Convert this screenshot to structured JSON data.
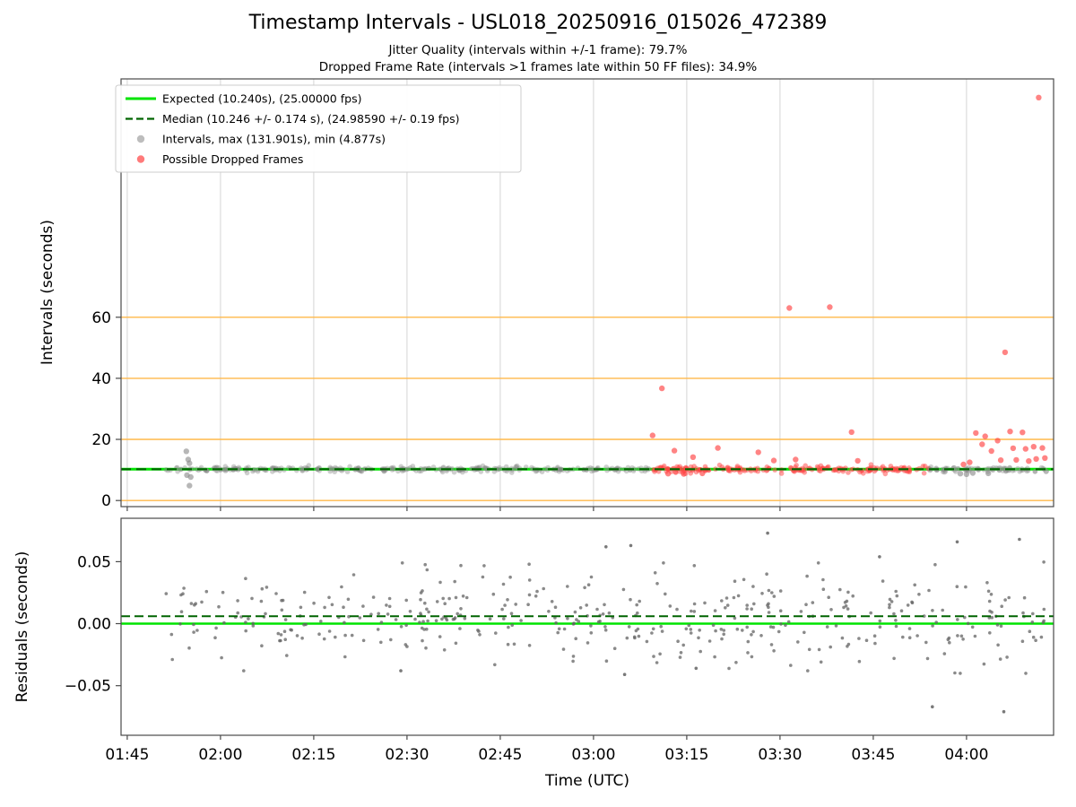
{
  "header": {
    "title": "Timestamp Intervals - USL018_20250916_015026_472389",
    "subtitle1": "Jitter Quality (intervals within +/-1 frame): 79.7%",
    "subtitle2": "Dropped Frame Rate (intervals >1 frames late within 50 FF files): 34.9%"
  },
  "xlabel": "Time (UTC)",
  "colors": {
    "expected_line": "#00e400",
    "median_line": "#006400",
    "interval_dot": "#878787",
    "dropped_dot": "#ff4242",
    "orange_gridline": "#ffb84a",
    "vertical_gridline": "#d6d6d6",
    "axis": "#4a4a4a",
    "residual_dot": "#636363",
    "legend_border": "#cccccc"
  },
  "legend": {
    "items": [
      {
        "type": "solid-line",
        "color_key": "expected_line",
        "label": "Expected (10.240s), (25.00000 fps)"
      },
      {
        "type": "dashed-line",
        "color_key": "median_line",
        "label": "Median (10.246 +/- 0.174 s), (24.98590 +/- 0.19 fps)"
      },
      {
        "type": "dot",
        "color_key": "interval_dot",
        "label": "Intervals, max (131.901s), min (4.877s)"
      },
      {
        "type": "dot",
        "color_key": "dropped_dot",
        "label": "Possible Dropped Frames"
      }
    ]
  },
  "chart_data": [
    {
      "type": "scatter",
      "name": "timestamp-intervals",
      "ylabel": "Intervals (seconds)",
      "ylim": [
        -2,
        138
      ],
      "yticks": [
        {
          "v": 0,
          "label": "0"
        },
        {
          "v": 20,
          "label": "20"
        },
        {
          "v": 40,
          "label": "40"
        },
        {
          "v": 60,
          "label": "60"
        }
      ],
      "x_minutes_lim": [
        104,
        254
      ],
      "xticks": [
        {
          "m": 105,
          "label": "01:45"
        },
        {
          "m": 120,
          "label": "02:00"
        },
        {
          "m": 135,
          "label": "02:15"
        },
        {
          "m": 150,
          "label": "02:30"
        },
        {
          "m": 165,
          "label": "02:45"
        },
        {
          "m": 180,
          "label": "03:00"
        },
        {
          "m": 195,
          "label": "03:15"
        },
        {
          "m": 210,
          "label": "03:30"
        },
        {
          "m": 225,
          "label": "03:45"
        },
        {
          "m": 240,
          "label": "04:00"
        }
      ],
      "expected_interval_s": 10.24,
      "expected_fps": "25.00000",
      "median_interval_s": 10.246,
      "median_interval_std_s": 0.174,
      "median_fps": "24.98590",
      "max_interval_s": 131.901,
      "min_interval_s": 4.877,
      "jitter_quality_pct": 79.7,
      "dropped_frame_rate_pct": 34.9,
      "ff_file_count": 50,
      "orange_lines": [
        0,
        20,
        40,
        60
      ],
      "dense_bands": [
        {
          "series": "intervals",
          "x0": 111,
          "x1": 189,
          "n": 300,
          "base": 10.24,
          "jitter": 0.4
        },
        {
          "series": "dropped",
          "x0": 189,
          "x1": 234,
          "n": 195,
          "base": 10.3,
          "jitter": 0.55
        },
        {
          "series": "intervals",
          "x0": 234,
          "x1": 252.5,
          "n": 80,
          "base": 10.2,
          "jitter": 0.45
        }
      ],
      "interval_outliers": [
        [
          114.5,
          16.1
        ],
        [
          114.8,
          13.4
        ],
        [
          115.0,
          12.2
        ],
        [
          114.6,
          8.3
        ],
        [
          115.2,
          7.7
        ],
        [
          115.0,
          4.877
        ],
        [
          239.0,
          8.8
        ],
        [
          240.0,
          8.6
        ],
        [
          241.0,
          9.0
        ],
        [
          243.5,
          8.9
        ],
        [
          252.8,
          9.6
        ]
      ],
      "dropped_outliers": [
        [
          189.5,
          21.3
        ],
        [
          191.0,
          36.7
        ],
        [
          192.0,
          8.8
        ],
        [
          193.0,
          16.3
        ],
        [
          194.5,
          8.7
        ],
        [
          196.0,
          14.2
        ],
        [
          197.5,
          8.9
        ],
        [
          200.0,
          17.2
        ],
        [
          206.5,
          15.8
        ],
        [
          209.0,
          13.1
        ],
        [
          211.5,
          63.0
        ],
        [
          212.5,
          13.4
        ],
        [
          218.0,
          63.3
        ],
        [
          221.5,
          22.4
        ],
        [
          222.5,
          13.0
        ],
        [
          239.5,
          11.8
        ],
        [
          240.5,
          12.5
        ],
        [
          241.5,
          22.1
        ],
        [
          242.5,
          18.4
        ],
        [
          243.0,
          21.0
        ],
        [
          244.0,
          16.2
        ],
        [
          245.0,
          19.6
        ],
        [
          245.5,
          13.2
        ],
        [
          246.2,
          48.5
        ],
        [
          247.0,
          22.6
        ],
        [
          247.5,
          17.1
        ],
        [
          248.0,
          13.3
        ],
        [
          249.0,
          22.3
        ],
        [
          249.5,
          16.9
        ],
        [
          250.0,
          12.9
        ],
        [
          250.8,
          17.6
        ],
        [
          251.2,
          13.6
        ],
        [
          251.6,
          131.901
        ],
        [
          252.2,
          17.2
        ],
        [
          252.6,
          13.9
        ]
      ]
    },
    {
      "type": "scatter",
      "name": "residuals",
      "ylabel": "Residuals (seconds)",
      "ylim": [
        -0.09,
        0.085
      ],
      "yticks": [
        {
          "v": 0.05,
          "label": "0.05"
        },
        {
          "v": 0,
          "label": "0.00"
        },
        {
          "v": -0.05,
          "label": "−0.05"
        }
      ],
      "zero_line": 0,
      "median_residual": 0.006,
      "cloud": [
        {
          "x0": 111,
          "x1": 234,
          "n": 380,
          "mean": 0.005,
          "sigma": 0.018,
          "clip": [
            -0.038,
            0.049
          ]
        },
        {
          "x0": 234,
          "x1": 252.5,
          "n": 55,
          "mean": 0.002,
          "sigma": 0.02,
          "clip": [
            -0.04,
            0.05
          ]
        }
      ],
      "outliers": [
        [
          182,
          0.062
        ],
        [
          186,
          0.063
        ],
        [
          208,
          0.073
        ],
        [
          238.5,
          0.066
        ],
        [
          226,
          0.054
        ],
        [
          248.5,
          0.068
        ],
        [
          234.5,
          -0.067
        ],
        [
          246,
          -0.071
        ],
        [
          149,
          -0.038
        ],
        [
          185,
          -0.041
        ],
        [
          196.5,
          -0.036
        ]
      ]
    }
  ]
}
